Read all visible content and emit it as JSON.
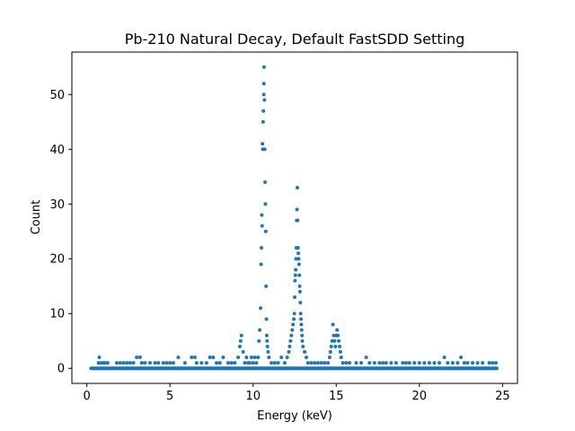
{
  "chart_data": {
    "type": "scatter",
    "title": "Pb-210 Natural Decay, Default FastSDD Setting",
    "xlabel": "Energy (keV)",
    "ylabel": "Count",
    "xlim": [
      -0.9,
      25.9
    ],
    "ylim": [
      -2.75,
      57.75
    ],
    "x_ticks": [
      0,
      5,
      10,
      15,
      20,
      25
    ],
    "x_tick_labels": [
      "0",
      "5",
      "10",
      "15",
      "20",
      "25"
    ],
    "y_ticks": [
      0,
      10,
      20,
      30,
      40,
      50
    ],
    "y_tick_labels": [
      "0",
      "10",
      "20",
      "30",
      "40",
      "50"
    ],
    "grid": false,
    "marker_color": "#1f77b4",
    "series": [
      {
        "points": [
          [
            0.7,
            1
          ],
          [
            0.75,
            2
          ],
          [
            0.85,
            1
          ],
          [
            1.0,
            1
          ],
          [
            1.1,
            1
          ],
          [
            1.25,
            1
          ],
          [
            1.8,
            1
          ],
          [
            2.0,
            1
          ],
          [
            2.2,
            1
          ],
          [
            2.4,
            1
          ],
          [
            2.6,
            1
          ],
          [
            2.8,
            1
          ],
          [
            3.0,
            2
          ],
          [
            3.2,
            2
          ],
          [
            3.3,
            1
          ],
          [
            3.5,
            1
          ],
          [
            3.8,
            1
          ],
          [
            4.1,
            1
          ],
          [
            4.3,
            1
          ],
          [
            4.6,
            1
          ],
          [
            4.8,
            1
          ],
          [
            5.0,
            1
          ],
          [
            5.2,
            1
          ],
          [
            5.5,
            2
          ],
          [
            5.9,
            1
          ],
          [
            6.3,
            2
          ],
          [
            6.5,
            2
          ],
          [
            6.6,
            1
          ],
          [
            6.9,
            1
          ],
          [
            7.2,
            1
          ],
          [
            7.4,
            2
          ],
          [
            7.6,
            2
          ],
          [
            7.8,
            1
          ],
          [
            8.0,
            1
          ],
          [
            8.2,
            2
          ],
          [
            8.5,
            1
          ],
          [
            8.7,
            1
          ],
          [
            8.9,
            1
          ],
          [
            9.1,
            2
          ],
          [
            9.2,
            4
          ],
          [
            9.25,
            5
          ],
          [
            9.3,
            6
          ],
          [
            9.4,
            3
          ],
          [
            9.5,
            1
          ],
          [
            9.6,
            2
          ],
          [
            9.7,
            1
          ],
          [
            9.8,
            1
          ],
          [
            9.9,
            2
          ],
          [
            10.0,
            1
          ],
          [
            10.1,
            2
          ],
          [
            10.2,
            1
          ],
          [
            10.3,
            2
          ],
          [
            10.35,
            5
          ],
          [
            10.4,
            7
          ],
          [
            10.45,
            11
          ],
          [
            10.48,
            19
          ],
          [
            10.5,
            22
          ],
          [
            10.52,
            28
          ],
          [
            10.54,
            26
          ],
          [
            10.56,
            41
          ],
          [
            10.58,
            40
          ],
          [
            10.6,
            45
          ],
          [
            10.62,
            47
          ],
          [
            10.64,
            50
          ],
          [
            10.65,
            52
          ],
          [
            10.66,
            55
          ],
          [
            10.68,
            49
          ],
          [
            10.7,
            40
          ],
          [
            10.72,
            34
          ],
          [
            10.74,
            30
          ],
          [
            10.76,
            25
          ],
          [
            10.78,
            15
          ],
          [
            10.8,
            9
          ],
          [
            10.82,
            6
          ],
          [
            10.84,
            5
          ],
          [
            10.86,
            4
          ],
          [
            10.9,
            3
          ],
          [
            10.95,
            2
          ],
          [
            11.1,
            1
          ],
          [
            11.3,
            1
          ],
          [
            11.5,
            1
          ],
          [
            11.7,
            2
          ],
          [
            11.9,
            1
          ],
          [
            12.05,
            2
          ],
          [
            12.15,
            3
          ],
          [
            12.2,
            4
          ],
          [
            12.25,
            5
          ],
          [
            12.3,
            6
          ],
          [
            12.35,
            7
          ],
          [
            12.4,
            8
          ],
          [
            12.45,
            9
          ],
          [
            12.48,
            10
          ],
          [
            12.5,
            13
          ],
          [
            12.52,
            16
          ],
          [
            12.54,
            17
          ],
          [
            12.56,
            18
          ],
          [
            12.58,
            20
          ],
          [
            12.6,
            22
          ],
          [
            12.62,
            27
          ],
          [
            12.64,
            29
          ],
          [
            12.66,
            33
          ],
          [
            12.68,
            27
          ],
          [
            12.7,
            22
          ],
          [
            12.72,
            21
          ],
          [
            12.74,
            20
          ],
          [
            12.76,
            19
          ],
          [
            12.78,
            17
          ],
          [
            12.8,
            15
          ],
          [
            12.82,
            14
          ],
          [
            12.84,
            12
          ],
          [
            12.86,
            10
          ],
          [
            12.88,
            9
          ],
          [
            12.9,
            8
          ],
          [
            12.92,
            7
          ],
          [
            12.94,
            6
          ],
          [
            12.96,
            5
          ],
          [
            13.0,
            4
          ],
          [
            13.1,
            3
          ],
          [
            13.2,
            2
          ],
          [
            13.3,
            1
          ],
          [
            13.5,
            1
          ],
          [
            13.7,
            1
          ],
          [
            13.9,
            1
          ],
          [
            14.1,
            1
          ],
          [
            14.3,
            1
          ],
          [
            14.5,
            1
          ],
          [
            14.6,
            2
          ],
          [
            14.65,
            3
          ],
          [
            14.7,
            4
          ],
          [
            14.75,
            5
          ],
          [
            14.8,
            8
          ],
          [
            14.85,
            6
          ],
          [
            14.9,
            5
          ],
          [
            14.95,
            4
          ],
          [
            15.0,
            6
          ],
          [
            15.05,
            7
          ],
          [
            15.1,
            6
          ],
          [
            15.15,
            5
          ],
          [
            15.2,
            4
          ],
          [
            15.25,
            3
          ],
          [
            15.3,
            2
          ],
          [
            15.4,
            1
          ],
          [
            15.6,
            1
          ],
          [
            15.8,
            1
          ],
          [
            16.2,
            1
          ],
          [
            16.5,
            1
          ],
          [
            16.8,
            2
          ],
          [
            17.0,
            1
          ],
          [
            17.3,
            1
          ],
          [
            17.6,
            1
          ],
          [
            17.8,
            1
          ],
          [
            18.0,
            1
          ],
          [
            18.3,
            1
          ],
          [
            18.6,
            1
          ],
          [
            19.0,
            1
          ],
          [
            19.2,
            1
          ],
          [
            19.4,
            1
          ],
          [
            19.7,
            1
          ],
          [
            20.0,
            1
          ],
          [
            20.3,
            1
          ],
          [
            20.6,
            1
          ],
          [
            20.9,
            1
          ],
          [
            21.2,
            1
          ],
          [
            21.5,
            2
          ],
          [
            21.7,
            1
          ],
          [
            22.0,
            1
          ],
          [
            22.3,
            1
          ],
          [
            22.5,
            2
          ],
          [
            22.7,
            1
          ],
          [
            22.9,
            1
          ],
          [
            23.2,
            1
          ],
          [
            23.5,
            1
          ],
          [
            23.8,
            1
          ],
          [
            24.2,
            1
          ],
          [
            24.4,
            1
          ],
          [
            24.6,
            1
          ]
        ],
        "zero_line": [
          0.25,
          24.65
        ]
      }
    ]
  }
}
